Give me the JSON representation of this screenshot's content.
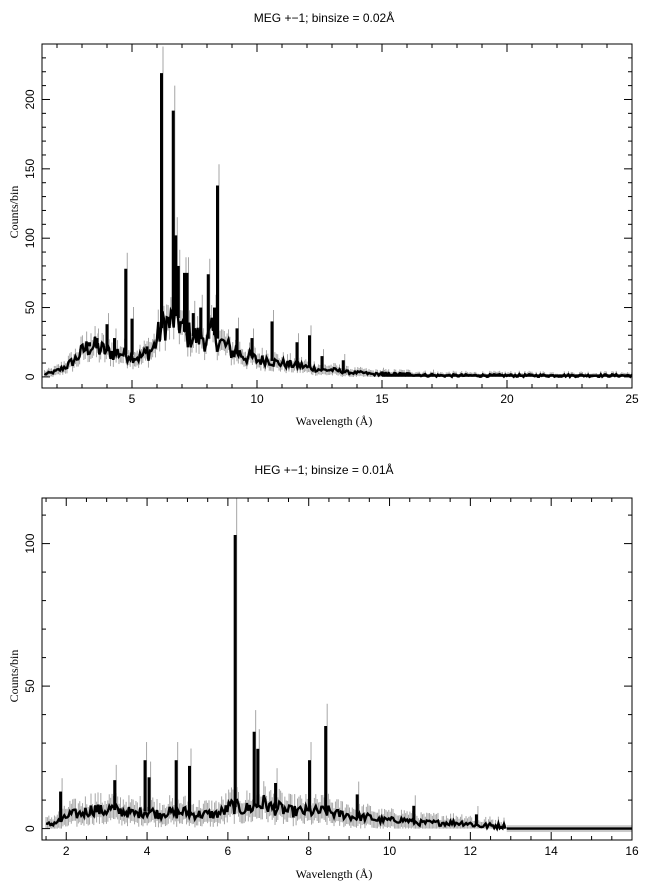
{
  "chart_data": [
    {
      "type": "line",
      "title": "MEG +−1; binsize = 0.02Å",
      "xlabel": "Wavelength (Å)",
      "ylabel": "Counts/bin",
      "xlim": [
        1.4,
        25
      ],
      "ylim": [
        -8,
        240
      ],
      "xticks": [
        5,
        10,
        15,
        20,
        25
      ],
      "yticks": [
        0,
        50,
        100,
        150,
        200
      ],
      "xminor": [
        2,
        3,
        4,
        6,
        7,
        8,
        9,
        11,
        12,
        13,
        14,
        16,
        17,
        18,
        19,
        21,
        22,
        23,
        24
      ],
      "yminor": [
        10,
        20,
        30,
        40,
        60,
        70,
        80,
        90,
        110,
        120,
        130,
        140,
        160,
        170,
        180,
        190,
        210,
        220,
        230
      ],
      "grid": false,
      "series": [
        {
          "x": [
            1.5,
            1.8,
            2.1,
            2.4,
            2.7,
            2.9,
            3.1,
            3.3,
            3.5,
            3.7,
            3.9,
            4.1,
            4.3,
            4.5,
            4.7,
            4.9,
            5.1,
            5.3,
            5.5,
            5.7,
            5.9,
            6.05,
            6.3,
            6.5,
            6.8,
            7.0,
            7.2,
            7.4,
            7.6,
            7.8,
            8.0,
            8.2,
            8.6,
            8.8,
            9.0,
            9.2,
            9.4,
            9.6,
            9.8,
            10.0,
            10.2,
            10.4,
            10.8,
            11.0,
            11.2,
            11.4,
            11.6,
            11.8,
            12.0,
            12.3,
            12.6,
            13.0,
            13.4,
            13.8,
            14.2,
            14.6,
            15.0,
            16.0,
            17.0,
            18.0,
            20.0,
            22.0,
            25.0
          ],
          "y": [
            2,
            3,
            5,
            8,
            12,
            16,
            20,
            22,
            22,
            20,
            19,
            18,
            17,
            18,
            16,
            17,
            15,
            14,
            16,
            18,
            22,
            30,
            40,
            38,
            45,
            35,
            30,
            30,
            28,
            30,
            26,
            32,
            24,
            22,
            18,
            18,
            16,
            14,
            14,
            12,
            12,
            13,
            10,
            10,
            9,
            9,
            8,
            8,
            7,
            6,
            5,
            5,
            4,
            3,
            3,
            2,
            2,
            2,
            1,
            1,
            1,
            1,
            1
          ]
        }
      ],
      "peaks": [
        {
          "x": 3.3,
          "y": 25
        },
        {
          "x": 3.6,
          "y": 28
        },
        {
          "x": 4.0,
          "y": 38
        },
        {
          "x": 4.3,
          "y": 28
        },
        {
          "x": 4.75,
          "y": 78
        },
        {
          "x": 5.0,
          "y": 42
        },
        {
          "x": 5.6,
          "y": 22
        },
        {
          "x": 6.18,
          "y": 219
        },
        {
          "x": 6.65,
          "y": 192
        },
        {
          "x": 6.75,
          "y": 102
        },
        {
          "x": 6.85,
          "y": 80
        },
        {
          "x": 7.1,
          "y": 75
        },
        {
          "x": 7.2,
          "y": 75
        },
        {
          "x": 7.45,
          "y": 46
        },
        {
          "x": 7.75,
          "y": 50
        },
        {
          "x": 8.05,
          "y": 74
        },
        {
          "x": 8.3,
          "y": 50
        },
        {
          "x": 8.42,
          "y": 138
        },
        {
          "x": 9.2,
          "y": 35
        },
        {
          "x": 9.8,
          "y": 28
        },
        {
          "x": 10.6,
          "y": 40
        },
        {
          "x": 11.6,
          "y": 25
        },
        {
          "x": 12.1,
          "y": 30
        },
        {
          "x": 12.6,
          "y": 15
        },
        {
          "x": 13.45,
          "y": 12
        },
        {
          "x": 15.0,
          "y": 4
        },
        {
          "x": 17.0,
          "y": 3
        }
      ]
    },
    {
      "type": "line",
      "title": "HEG +−1; binsize = 0.01Å",
      "xlabel": "Wavelength (Å)",
      "ylabel": "Counts/bin",
      "xlim": [
        1.4,
        16
      ],
      "ylim": [
        -4,
        116
      ],
      "xticks": [
        2,
        4,
        6,
        8,
        10,
        12,
        14,
        16
      ],
      "yticks": [
        0,
        50,
        100
      ],
      "xminor": [
        1.5,
        2.5,
        3,
        3.5,
        4.5,
        5,
        5.5,
        6.5,
        7,
        7.5,
        8.5,
        9,
        9.5,
        10.5,
        11,
        11.5,
        12.5,
        13,
        13.5,
        14.5,
        15,
        15.5
      ],
      "yminor": [
        10,
        20,
        30,
        40,
        60,
        70,
        80,
        90,
        110
      ],
      "grid": false,
      "series": [
        {
          "x": [
            1.5,
            1.7,
            1.9,
            2.1,
            2.3,
            2.5,
            2.7,
            2.9,
            3.1,
            3.3,
            3.5,
            3.7,
            3.9,
            4.1,
            4.3,
            4.5,
            4.7,
            4.9,
            5.1,
            5.3,
            5.5,
            5.7,
            5.9,
            6.1,
            6.3,
            6.5,
            6.7,
            6.9,
            7.1,
            7.3,
            7.5,
            7.7,
            7.9,
            8.1,
            8.3,
            8.5,
            8.7,
            8.9,
            9.1,
            9.3,
            9.5,
            9.7,
            9.9,
            10.1,
            10.4,
            10.7,
            11.0,
            11.3,
            11.6,
            11.9,
            12.2,
            12.5,
            12.8,
            13.0,
            14.0,
            15.0,
            16.0
          ],
          "y": [
            1,
            2,
            3,
            5,
            5,
            6,
            7,
            6,
            7,
            6,
            6,
            5,
            6,
            6,
            5,
            6,
            5,
            6,
            5,
            5,
            5,
            5,
            6,
            8,
            7,
            7,
            8,
            9,
            7,
            7,
            6,
            6,
            6,
            6,
            6,
            6,
            5,
            5,
            4,
            4,
            4,
            3,
            3,
            3,
            3,
            2,
            2,
            2,
            2,
            2,
            1,
            1,
            1,
            0,
            0,
            0,
            0
          ]
        }
      ],
      "peaks": [
        {
          "x": 1.86,
          "y": 13
        },
        {
          "x": 3.2,
          "y": 17
        },
        {
          "x": 3.95,
          "y": 24
        },
        {
          "x": 4.05,
          "y": 18
        },
        {
          "x": 4.72,
          "y": 24
        },
        {
          "x": 5.05,
          "y": 22
        },
        {
          "x": 6.18,
          "y": 103
        },
        {
          "x": 6.65,
          "y": 34
        },
        {
          "x": 6.74,
          "y": 28
        },
        {
          "x": 7.18,
          "y": 16
        },
        {
          "x": 8.02,
          "y": 24
        },
        {
          "x": 8.42,
          "y": 36
        },
        {
          "x": 9.2,
          "y": 12
        },
        {
          "x": 10.6,
          "y": 8
        },
        {
          "x": 12.15,
          "y": 5
        }
      ],
      "flat_band_from_x": 12.9
    }
  ]
}
